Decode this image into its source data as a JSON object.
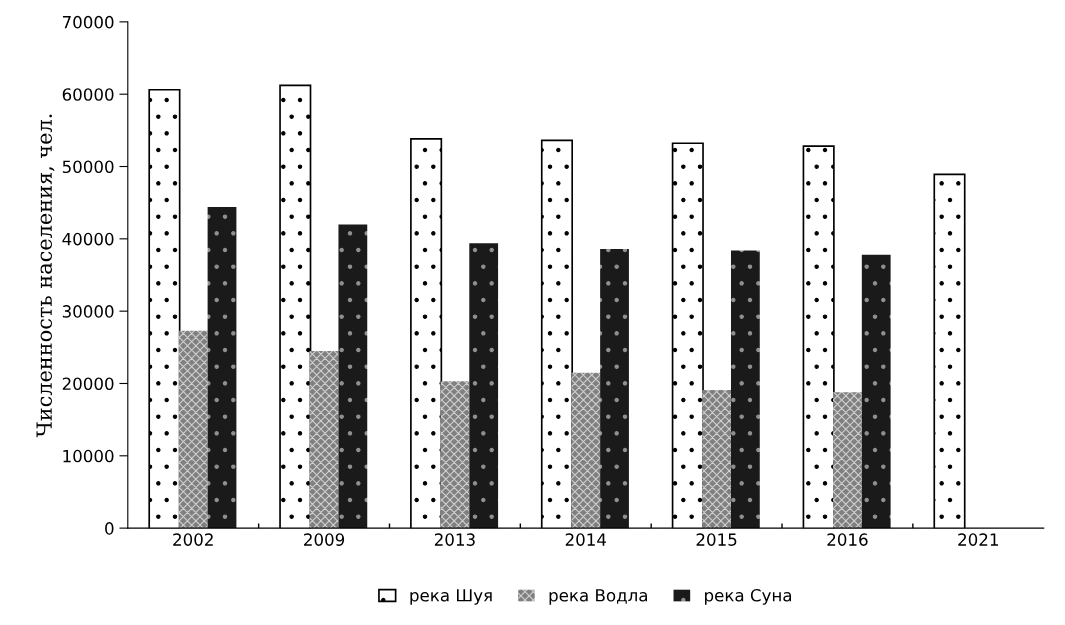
{
  "chart_data": {
    "type": "bar",
    "ylabel": "Численность населения, чел.",
    "categories": [
      "2002",
      "2009",
      "2013",
      "2014",
      "2015",
      "2016",
      "2021"
    ],
    "series": [
      {
        "name": "река Шуя",
        "color": "#ffffff",
        "values": [
          60500,
          61100,
          53700,
          53500,
          53100,
          52700,
          48800
        ]
      },
      {
        "name": "река Водла",
        "color": "#808080",
        "values": [
          27300,
          24500,
          20300,
          21500,
          19100,
          18800,
          null
        ]
      },
      {
        "name": "река Суна",
        "color": "#1a1a1a",
        "values": [
          44400,
          42000,
          39400,
          38600,
          38400,
          37800,
          null
        ]
      }
    ],
    "ylim": [
      0,
      70000
    ],
    "yticks": [
      0,
      10000,
      20000,
      30000,
      40000,
      50000,
      60000,
      70000
    ],
    "grid": false,
    "legend": "bottom"
  }
}
